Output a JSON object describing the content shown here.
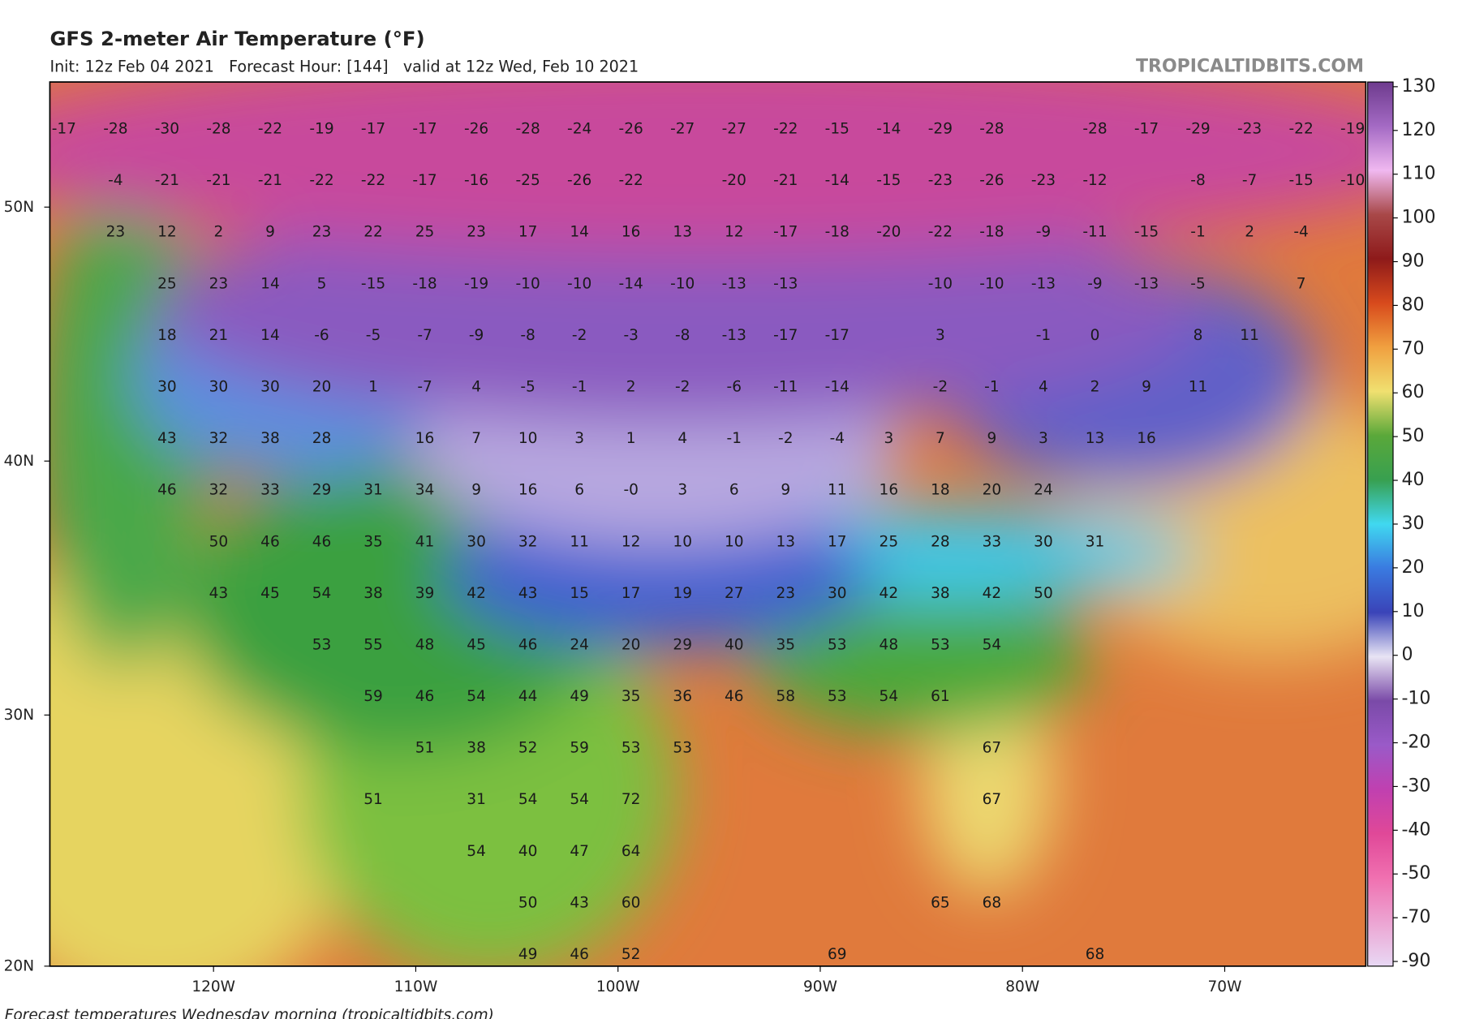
{
  "header": {
    "title": "GFS 2-meter Air Temperature (°F)",
    "subtitle": "Init: 12z Feb 04 2021   Forecast Hour: [144]   valid at 12z Wed, Feb 10 2021",
    "watermark": "TROPICALTIDBITS.COM"
  },
  "map": {
    "latitude_labels": [
      "50N",
      "40N",
      "30N",
      "20N"
    ],
    "longitude_labels": [
      "120W",
      "110W",
      "100W",
      "90W",
      "80W",
      "70W"
    ],
    "temperature_rows": [
      [
        -17,
        -28,
        -30,
        -28,
        -22,
        -19,
        -17,
        -17,
        -26,
        -28,
        -24,
        -26,
        -27,
        -27,
        -22,
        -15,
        -14,
        -29,
        -28,
        null,
        -28,
        -17,
        -29,
        -23,
        -22,
        -19
      ],
      [
        null,
        -4,
        -21,
        -21,
        -21,
        -22,
        -22,
        -17,
        -16,
        -25,
        -26,
        -22,
        null,
        -20,
        -21,
        -14,
        -15,
        -23,
        -26,
        -23,
        -12,
        null,
        -8,
        -7,
        -15,
        -10
      ],
      [
        null,
        23,
        12,
        2,
        9,
        23,
        22,
        25,
        23,
        17,
        14,
        16,
        13,
        12,
        -17,
        -18,
        -20,
        -22,
        -18,
        -9,
        -11,
        -15,
        -1,
        2,
        -4,
        null
      ],
      [
        null,
        null,
        25,
        23,
        14,
        5,
        -15,
        -18,
        -19,
        -10,
        -10,
        -14,
        -10,
        -13,
        -13,
        null,
        null,
        -10,
        -10,
        -13,
        -9,
        -13,
        -5,
        null,
        7,
        null
      ],
      [
        null,
        null,
        18,
        21,
        14,
        -6,
        -5,
        -7,
        -9,
        -8,
        -2,
        -3,
        -8,
        -13,
        -17,
        -17,
        null,
        3,
        null,
        -1,
        0,
        null,
        8,
        11,
        null,
        null
      ],
      [
        null,
        null,
        30,
        30,
        30,
        20,
        1,
        -7,
        4,
        -5,
        -1,
        2,
        -2,
        -6,
        -11,
        -14,
        null,
        -2,
        -1,
        4,
        2,
        9,
        11,
        null,
        null,
        null
      ],
      [
        null,
        null,
        43,
        32,
        38,
        28,
        null,
        16,
        7,
        10,
        3,
        1,
        4,
        -1,
        -2,
        -4,
        3,
        7,
        9,
        3,
        13,
        16,
        null,
        null,
        null,
        null
      ],
      [
        null,
        null,
        46,
        32,
        33,
        29,
        31,
        34,
        9,
        16,
        6,
        "-0",
        3,
        6,
        9,
        11,
        16,
        18,
        20,
        24,
        null,
        null,
        null,
        null,
        null,
        null
      ],
      [
        null,
        null,
        null,
        50,
        46,
        46,
        35,
        41,
        30,
        32,
        11,
        12,
        10,
        10,
        13,
        17,
        25,
        28,
        33,
        30,
        31,
        null,
        null,
        null,
        null,
        null
      ],
      [
        null,
        null,
        null,
        43,
        45,
        54,
        38,
        39,
        42,
        43,
        15,
        17,
        19,
        27,
        23,
        30,
        42,
        38,
        42,
        50,
        null,
        null,
        null,
        null,
        null,
        null
      ],
      [
        null,
        null,
        null,
        null,
        null,
        53,
        55,
        48,
        45,
        46,
        24,
        20,
        29,
        40,
        35,
        53,
        48,
        53,
        54,
        null,
        null,
        null,
        null,
        null,
        null,
        null
      ],
      [
        null,
        null,
        null,
        null,
        null,
        null,
        59,
        46,
        54,
        44,
        49,
        35,
        36,
        46,
        58,
        53,
        54,
        61,
        null,
        null,
        null,
        null,
        null,
        null,
        null,
        null
      ],
      [
        null,
        null,
        null,
        null,
        null,
        null,
        null,
        51,
        38,
        52,
        59,
        53,
        53,
        null,
        null,
        null,
        null,
        null,
        67,
        null,
        null,
        null,
        null,
        null,
        null,
        null
      ],
      [
        null,
        null,
        null,
        null,
        null,
        null,
        51,
        null,
        31,
        54,
        54,
        72,
        null,
        null,
        null,
        null,
        null,
        null,
        67,
        null,
        null,
        null,
        null,
        null,
        null,
        null
      ],
      [
        null,
        null,
        null,
        null,
        null,
        null,
        null,
        null,
        54,
        40,
        47,
        64,
        null,
        null,
        null,
        null,
        null,
        null,
        null,
        null,
        null,
        null,
        null,
        null,
        null,
        null
      ],
      [
        null,
        null,
        null,
        null,
        null,
        null,
        null,
        null,
        null,
        50,
        43,
        60,
        null,
        null,
        null,
        null,
        null,
        65,
        68,
        null,
        null,
        null,
        null,
        null,
        null,
        null
      ],
      [
        null,
        null,
        null,
        null,
        null,
        null,
        null,
        null,
        null,
        49,
        46,
        52,
        null,
        null,
        null,
        69,
        null,
        null,
        null,
        null,
        68,
        null,
        null,
        null,
        null,
        null
      ]
    ]
  },
  "colorbar": {
    "ticks": [
      130,
      120,
      110,
      100,
      90,
      80,
      70,
      60,
      50,
      40,
      30,
      20,
      10,
      0,
      -10,
      -20,
      -30,
      -40,
      -50,
      -70,
      -90
    ]
  },
  "caption": "Forecast temperatures Wednesday morning (tropicaltidbits.com)"
}
